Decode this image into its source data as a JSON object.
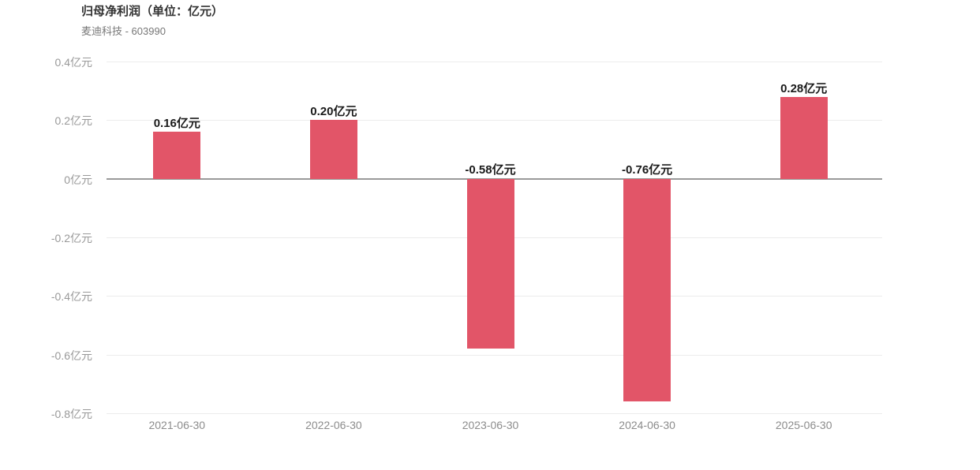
{
  "header": {
    "title": "归母净利润（单位：亿元）",
    "subtitle": "麦迪科技 - 603990"
  },
  "chart_data": {
    "type": "bar",
    "title": "归母净利润（单位：亿元）",
    "subtitle": "麦迪科技 - 603990",
    "categories": [
      "2021-06-30",
      "2022-06-30",
      "2023-06-30",
      "2024-06-30",
      "2025-06-30"
    ],
    "values": [
      0.16,
      0.2,
      -0.58,
      -0.76,
      0.28
    ],
    "value_labels": [
      "0.16亿元",
      "0.20亿元",
      "-0.58亿元",
      "-0.76亿元",
      "0.28亿元"
    ],
    "unit": "亿元",
    "ylim": [
      -0.8,
      0.4
    ],
    "ytick_step": 0.2,
    "ytick_labels": [
      "0.4亿元",
      "0.2亿元",
      "0亿元",
      "-0.2亿元",
      "-0.4亿元",
      "-0.6亿元",
      "-0.8亿元"
    ],
    "grid": true,
    "legend_position": "none",
    "colors": {
      "bar": "#e25568",
      "gridline": "#ececec",
      "zero_line": "#999999",
      "axis_text": "#999999",
      "value_label": "#1a1a1a",
      "title": "#333333",
      "subtitle": "#777777"
    }
  }
}
